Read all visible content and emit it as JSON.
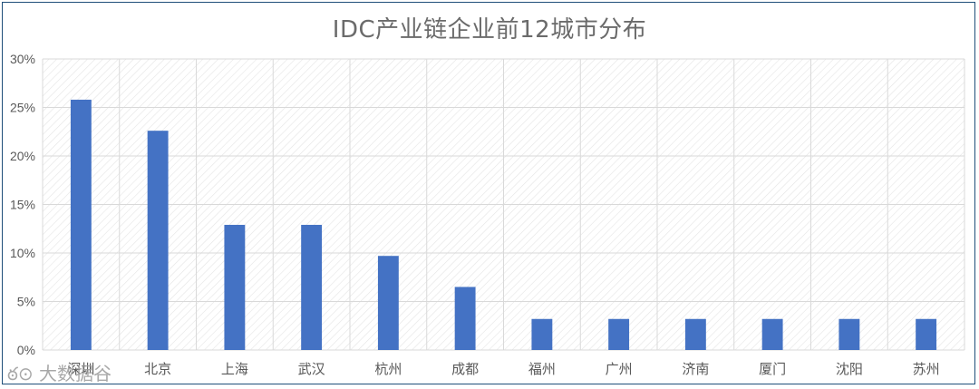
{
  "chart_data": {
    "type": "bar",
    "title": "IDC产业链企业前12城市分布",
    "categories": [
      "深圳",
      "北京",
      "上海",
      "武汉",
      "杭州",
      "成都",
      "福州",
      "广州",
      "济南",
      "厦门",
      "沈阳",
      "苏州"
    ],
    "values": [
      25.8,
      22.6,
      12.9,
      12.9,
      9.7,
      6.5,
      3.2,
      3.2,
      3.2,
      3.2,
      3.2,
      3.2
    ],
    "ylim": [
      0,
      30
    ],
    "yticks": [
      "0%",
      "5%",
      "10%",
      "15%",
      "20%",
      "25%",
      "30%"
    ],
    "grid": true,
    "legend": "none",
    "colors": {
      "bar": "#4472c4",
      "grid": "#d9d9d9",
      "plot_background": "hatched"
    }
  },
  "watermark": "大数据谷"
}
